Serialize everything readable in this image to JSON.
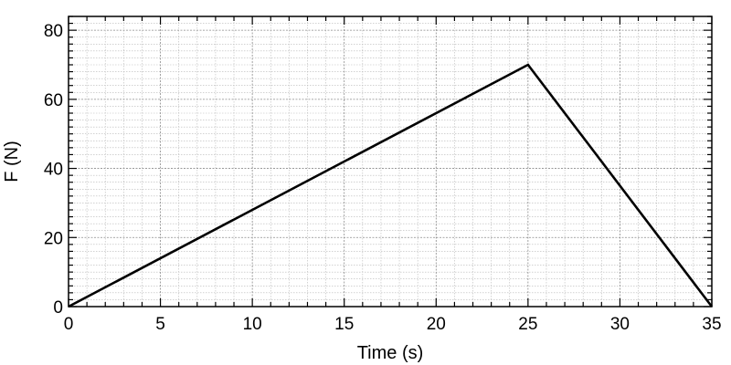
{
  "chart_data": {
    "type": "line",
    "title": "",
    "xlabel": "Time (s)",
    "ylabel": "F (N)",
    "xlim": [
      0,
      35
    ],
    "ylim": [
      0,
      84
    ],
    "x_major_ticks": [
      0,
      5,
      10,
      15,
      20,
      25,
      30,
      35
    ],
    "y_major_ticks": [
      0,
      20,
      40,
      60,
      80
    ],
    "x_minor_step": 1,
    "y_minor_step": 2,
    "grid": true,
    "legend": "none",
    "series": [
      {
        "color": "#000000",
        "x": [
          0,
          25,
          35
        ],
        "y": [
          0,
          70,
          0
        ]
      }
    ]
  }
}
